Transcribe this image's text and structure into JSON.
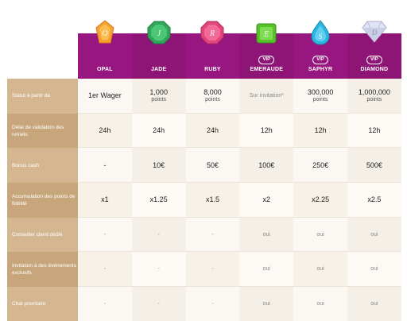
{
  "tiers": [
    {
      "name": "OPAL",
      "vip": "",
      "gem": "opal-gem-icon",
      "color": "#f39a2a"
    },
    {
      "name": "JADE",
      "vip": "",
      "gem": "jade-gem-icon",
      "color": "#2fa65a"
    },
    {
      "name": "RUBY",
      "vip": "",
      "gem": "ruby-gem-icon",
      "color": "#e0457c"
    },
    {
      "name": "EMERAUDE",
      "vip": "VIP",
      "gem": "emerald-gem-icon",
      "color": "#57c22b"
    },
    {
      "name": "SAPHYR",
      "vip": "VIP",
      "gem": "sapphire-gem-icon",
      "color": "#2bb6e0"
    },
    {
      "name": "DIAMOND",
      "vip": "VIP",
      "gem": "diamond-gem-icon",
      "color": "#dfe3f3"
    }
  ],
  "rows": [
    {
      "label": "Statut à partir de",
      "cells": [
        {
          "main": "1er Wager",
          "sub": ""
        },
        {
          "main": "1,000",
          "sub": "points"
        },
        {
          "main": "8,000",
          "sub": "points"
        },
        {
          "main": "Sur invitation*",
          "sub": ""
        },
        {
          "main": "300,000",
          "sub": "points"
        },
        {
          "main": "1,000,000",
          "sub": "points"
        }
      ]
    },
    {
      "label": "Délai de validation des retraits",
      "cells": [
        {
          "main": "24h",
          "sub": ""
        },
        {
          "main": "24h",
          "sub": ""
        },
        {
          "main": "24h",
          "sub": ""
        },
        {
          "main": "12h",
          "sub": ""
        },
        {
          "main": "12h",
          "sub": ""
        },
        {
          "main": "12h",
          "sub": ""
        }
      ]
    },
    {
      "label": "Bonus cash",
      "cells": [
        {
          "main": "-",
          "sub": ""
        },
        {
          "main": "10€",
          "sub": ""
        },
        {
          "main": "50€",
          "sub": ""
        },
        {
          "main": "100€",
          "sub": ""
        },
        {
          "main": "250€",
          "sub": ""
        },
        {
          "main": "500€",
          "sub": ""
        }
      ]
    },
    {
      "label": "Accumulation des points de fidélité",
      "cells": [
        {
          "main": "x1",
          "sub": ""
        },
        {
          "main": "x1.25",
          "sub": ""
        },
        {
          "main": "x1.5",
          "sub": ""
        },
        {
          "main": "x2",
          "sub": ""
        },
        {
          "main": "x2.25",
          "sub": ""
        },
        {
          "main": "x2.5",
          "sub": ""
        }
      ]
    },
    {
      "label": "Conseiller client dédié",
      "cells": [
        {
          "main": "-",
          "sub": ""
        },
        {
          "main": "-",
          "sub": ""
        },
        {
          "main": "-",
          "sub": ""
        },
        {
          "main": "oui",
          "sub": ""
        },
        {
          "main": "oui",
          "sub": ""
        },
        {
          "main": "oui",
          "sub": ""
        }
      ]
    },
    {
      "label": "Invitation à des événements exclusifs",
      "cells": [
        {
          "main": "-",
          "sub": ""
        },
        {
          "main": "-",
          "sub": ""
        },
        {
          "main": "-",
          "sub": ""
        },
        {
          "main": "oui",
          "sub": ""
        },
        {
          "main": "oui",
          "sub": ""
        },
        {
          "main": "oui",
          "sub": ""
        }
      ]
    },
    {
      "label": "Chat prioritaire",
      "cells": [
        {
          "main": "-",
          "sub": ""
        },
        {
          "main": "-",
          "sub": ""
        },
        {
          "main": "-",
          "sub": ""
        },
        {
          "main": "oui",
          "sub": ""
        },
        {
          "main": "oui",
          "sub": ""
        },
        {
          "main": "oui",
          "sub": ""
        }
      ]
    }
  ],
  "colors": {
    "header_purple": "#98167f",
    "label_tan": "#d4b791"
  }
}
